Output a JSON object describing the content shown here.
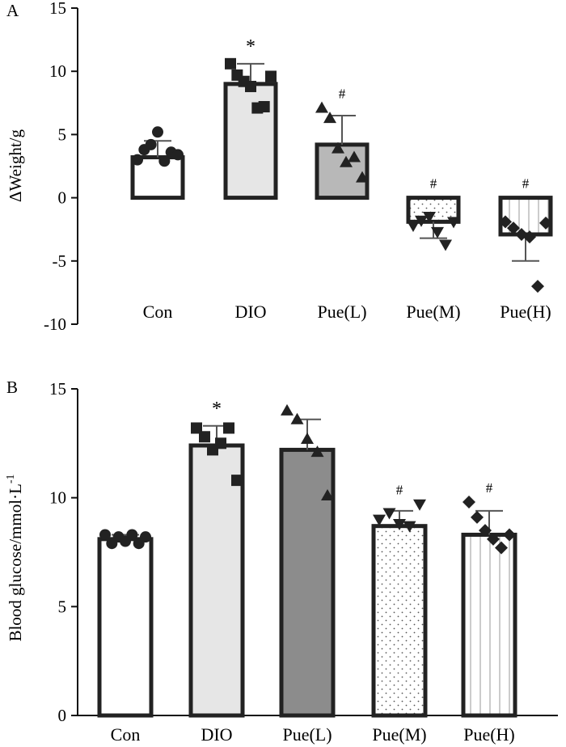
{
  "colors": {
    "bar_stroke": "#222222",
    "fill_con": "#ffffff",
    "fill_dio": "#e6e6e6",
    "fill_pue_l_a": "#b8b8b8",
    "fill_pue_l_b": "#8c8c8c",
    "fill_pattern": "#ffffff"
  },
  "chart_data": [
    {
      "panel_label": "A",
      "type": "bar",
      "ylabel": "ΔWeight/g",
      "ylim": [
        -10,
        15
      ],
      "yticks": [
        "15",
        "10",
        "5",
        "0",
        "-5",
        "-10"
      ],
      "categories": [
        "Con",
        "DIO",
        "Pue(L)",
        "Pue(M)",
        "Pue(H)"
      ],
      "values": [
        3.2,
        9.0,
        4.2,
        -1.9,
        -2.9
      ],
      "errors": [
        1.3,
        1.6,
        2.3,
        1.3,
        2.1
      ],
      "annotations": [
        "",
        "*",
        "#",
        "#",
        "#"
      ],
      "points": [
        [
          3.0,
          3.8,
          4.2,
          5.2,
          2.9,
          3.6,
          3.4
        ],
        [
          10.6,
          9.7,
          9.2,
          8.8,
          7.1,
          7.2,
          9.6
        ],
        [
          7.1,
          6.3,
          3.9,
          2.8,
          3.2,
          1.6
        ],
        [
          -2.2,
          -1.8,
          -1.5,
          -2.7,
          -3.7,
          -1.9
        ],
        [
          -1.9,
          -2.4,
          -2.9,
          -3.1,
          -7.0,
          -2.0
        ]
      ],
      "markers": [
        "circle",
        "square",
        "triangle",
        "triangle-down",
        "diamond"
      ],
      "fills": [
        "#ffffff",
        "#e6e6e6",
        "#b8b8b8",
        "pattern-dots",
        "pattern-vlines"
      ]
    },
    {
      "panel_label": "B",
      "type": "bar",
      "ylabel": "Blood glucose/mmol·L",
      "ylabel_sup": "-1",
      "ylim": [
        0,
        15
      ],
      "yticks": [
        "15",
        "10",
        "5",
        "0"
      ],
      "categories": [
        "Con",
        "DIO",
        "Pue(L)",
        "Pue(M)",
        "Pue(H)"
      ],
      "values": [
        8.1,
        12.4,
        12.2,
        8.7,
        8.3
      ],
      "errors": [
        0.2,
        0.9,
        1.4,
        0.7,
        1.1
      ],
      "annotations": [
        "",
        "*",
        "",
        "#",
        "#"
      ],
      "points": [
        [
          8.3,
          7.9,
          8.2,
          8.0,
          8.3,
          7.9,
          8.2
        ],
        [
          13.2,
          12.8,
          12.2,
          12.5,
          13.2,
          10.8
        ],
        [
          14.0,
          13.6,
          12.7,
          12.1,
          10.1
        ],
        [
          9.0,
          9.3,
          8.8,
          8.7,
          9.7
        ],
        [
          9.8,
          9.1,
          8.5,
          8.1,
          7.7,
          8.3
        ]
      ],
      "markers": [
        "circle",
        "square",
        "triangle",
        "triangle-down",
        "diamond"
      ],
      "fills": [
        "#ffffff",
        "#e6e6e6",
        "#8c8c8c",
        "pattern-dots",
        "pattern-vlines"
      ]
    }
  ]
}
